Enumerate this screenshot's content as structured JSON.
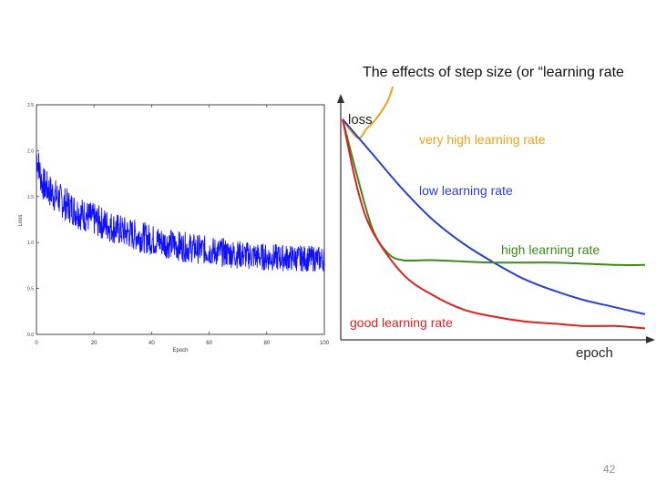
{
  "slide": {
    "title": "The effects of step size (or “learning rate",
    "number": "42"
  },
  "chart_data": [
    {
      "type": "line",
      "xlabel": "Epoch",
      "ylabel": "Loss",
      "xlim": [
        0,
        100
      ],
      "ylim": [
        0.0,
        2.5
      ],
      "x_ticks": [
        "0",
        "20",
        "40",
        "60",
        "80",
        "100"
      ],
      "y_ticks": [
        "2.5",
        "2.0",
        "1.5",
        "1.0",
        "0.5",
        "0.0"
      ],
      "series": [
        {
          "color": "#1010ff",
          "x": [
            0,
            2,
            5,
            10,
            15,
            20,
            30,
            40,
            50,
            60,
            70,
            80,
            90,
            100
          ],
          "y": [
            1.95,
            1.65,
            1.55,
            1.42,
            1.32,
            1.25,
            1.12,
            1.03,
            0.96,
            0.91,
            0.87,
            0.84,
            0.83,
            0.82
          ]
        }
      ]
    },
    {
      "type": "line",
      "xlabel": "epoch",
      "ylabel": "loss",
      "annotations": [
        {
          "text": "very high learning rate",
          "color": "#e8a317"
        },
        {
          "text": "low learning rate",
          "color": "#2a3fd6"
        },
        {
          "text": "high learning rate",
          "color": "#3a8a1a"
        },
        {
          "text": "good learning rate",
          "color": "#e02020"
        }
      ],
      "series": [
        {
          "color": "#e8a317",
          "x": [
            0,
            0.05,
            0.08,
            0.11,
            0.15,
            0.18,
            0.2
          ],
          "y": [
            0.9,
            0.82,
            0.86,
            0.9,
            0.98,
            1.1,
            1.2
          ]
        },
        {
          "color": "#2a3fd6",
          "x": [
            0,
            0.1,
            0.2,
            0.3,
            0.4,
            0.5,
            0.6,
            0.7,
            0.8,
            0.9,
            1.0
          ],
          "y": [
            0.9,
            0.75,
            0.6,
            0.47,
            0.37,
            0.29,
            0.22,
            0.17,
            0.13,
            0.1,
            0.07
          ]
        },
        {
          "color": "#3a8a1a",
          "x": [
            0,
            0.05,
            0.1,
            0.15,
            0.2,
            0.3,
            0.5,
            0.7,
            0.9,
            1.0
          ],
          "y": [
            0.9,
            0.65,
            0.43,
            0.33,
            0.3,
            0.3,
            0.29,
            0.29,
            0.28,
            0.28
          ]
        },
        {
          "color": "#e02020",
          "x": [
            0,
            0.05,
            0.1,
            0.2,
            0.3,
            0.4,
            0.5,
            0.6,
            0.7,
            0.8,
            0.9,
            1.0
          ],
          "y": [
            0.9,
            0.6,
            0.42,
            0.24,
            0.15,
            0.09,
            0.06,
            0.04,
            0.03,
            0.02,
            0.02,
            0.01
          ]
        }
      ]
    }
  ]
}
